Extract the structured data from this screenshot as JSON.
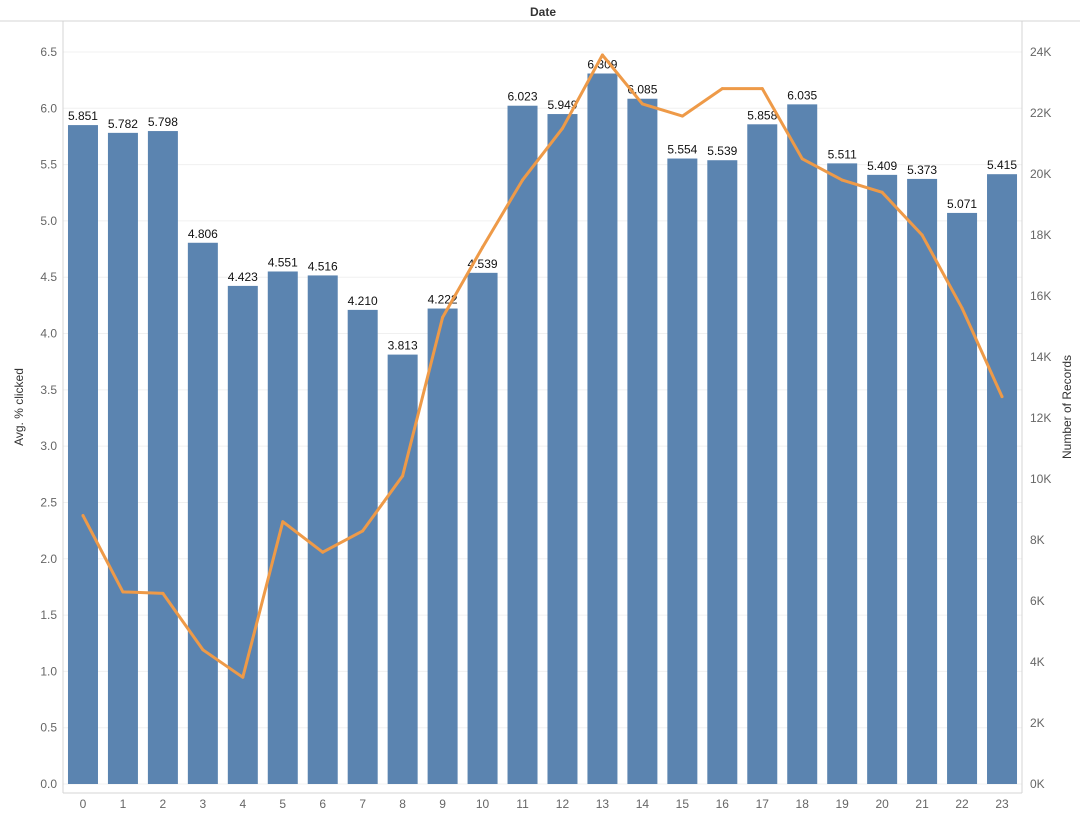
{
  "chart_data": {
    "type": "bar",
    "title": "Date",
    "categories": [
      "0",
      "1",
      "2",
      "3",
      "4",
      "5",
      "6",
      "7",
      "8",
      "9",
      "10",
      "11",
      "12",
      "13",
      "14",
      "15",
      "16",
      "17",
      "18",
      "19",
      "20",
      "21",
      "22",
      "23"
    ],
    "series": [
      {
        "name": "Avg. % clicked",
        "type": "bar",
        "axis": "left",
        "color": "#5b84b0",
        "values": [
          5.851,
          5.782,
          5.798,
          4.806,
          4.423,
          4.551,
          4.516,
          4.21,
          3.813,
          4.222,
          4.539,
          6.023,
          5.949,
          6.309,
          6.085,
          5.554,
          5.539,
          5.858,
          6.035,
          5.511,
          5.409,
          5.373,
          5.071,
          5.415
        ],
        "labels": [
          "5.851",
          "5.782",
          "5.798",
          "4.806",
          "4.423",
          "4.551",
          "4.516",
          "4.210",
          "3.813",
          "4.222",
          "4.539",
          "6.023",
          "5.949",
          "6.309",
          "6.085",
          "5.554",
          "5.539",
          "5.858",
          "6.035",
          "5.511",
          "5.409",
          "5.373",
          "5.071",
          "5.415"
        ]
      },
      {
        "name": "Number of Records",
        "type": "line",
        "axis": "right",
        "color": "#ee9a48",
        "values": [
          8800,
          6300,
          6250,
          4400,
          3500,
          8600,
          7600,
          8300,
          10100,
          15300,
          17600,
          19800,
          21500,
          23900,
          22300,
          21900,
          22800,
          22800,
          20500,
          19800,
          19400,
          18000,
          15600,
          12700
        ]
      }
    ],
    "ylabel": "Avg. % clicked",
    "ylim": [
      0,
      6.5
    ],
    "yticks": [
      "0.0",
      "0.5",
      "1.0",
      "1.5",
      "2.0",
      "2.5",
      "3.0",
      "3.5",
      "4.0",
      "4.5",
      "5.0",
      "5.5",
      "6.0",
      "6.5"
    ],
    "y2label": "Number of Records",
    "y2lim": [
      0,
      24000
    ],
    "y2ticks": [
      "0K",
      "2K",
      "4K",
      "6K",
      "8K",
      "10K",
      "12K",
      "14K",
      "16K",
      "18K",
      "20K",
      "22K",
      "24K"
    ],
    "grid": true
  }
}
